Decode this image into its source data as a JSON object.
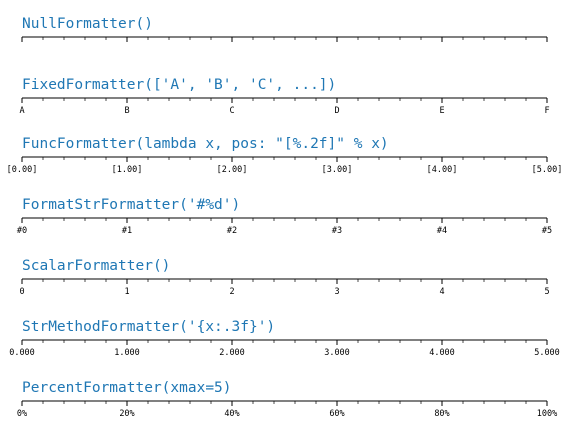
{
  "chart_data": {
    "type": "axis-tick-formatters",
    "xlim": [
      0,
      5
    ],
    "major_ticks": [
      0,
      1,
      2,
      3,
      4,
      5
    ],
    "minor_ticks_per_major": 4,
    "accent_color": "#1f77b4",
    "panels": [
      {
        "title": "NullFormatter()",
        "labels": []
      },
      {
        "title": "FixedFormatter(['A', 'B', 'C', ...])",
        "labels": [
          "A",
          "B",
          "C",
          "D",
          "E",
          "F"
        ]
      },
      {
        "title": "FuncFormatter(lambda x, pos: \"[%.2f]\" % x)",
        "labels": [
          "[0.00]",
          "[1.00]",
          "[2.00]",
          "[3.00]",
          "[4.00]",
          "[5.00]"
        ]
      },
      {
        "title": "FormatStrFormatter('#%d')",
        "labels": [
          "#0",
          "#1",
          "#2",
          "#3",
          "#4",
          "#5"
        ]
      },
      {
        "title": "ScalarFormatter()",
        "labels": [
          "0",
          "1",
          "2",
          "3",
          "4",
          "5"
        ]
      },
      {
        "title": "StrMethodFormatter('{x:.3f}')",
        "labels": [
          "0.000",
          "1.000",
          "2.000",
          "3.000",
          "4.000",
          "5.000"
        ]
      },
      {
        "title": "PercentFormatter(xmax=5)",
        "labels": [
          "0%",
          "20%",
          "40%",
          "60%",
          "80%",
          "100%"
        ]
      }
    ]
  }
}
